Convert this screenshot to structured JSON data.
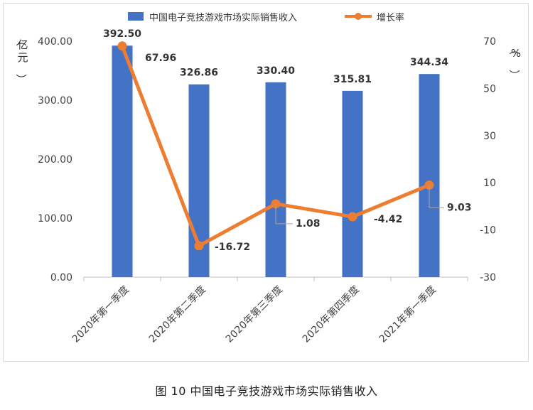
{
  "caption": "图 10  中国电子竞技游戏市场实际销售收入",
  "colors": {
    "bar": "#4472C4",
    "line": "#ED7D31",
    "axis": "#bfbfbf",
    "leader": "#a6a6a6"
  },
  "chart_data": {
    "type": "bar",
    "categories": [
      "2020年第一季度",
      "2020年第二季度",
      "2020年第三季度",
      "2020年第四季度",
      "2021年第一季度"
    ],
    "series": [
      {
        "name": "中国电子竞技游戏市场实际销售收入",
        "type": "bar",
        "axis": "left",
        "values": [
          392.5,
          326.86,
          330.4,
          315.81,
          344.34
        ],
        "labels": [
          "392.50",
          "326.86",
          "330.40",
          "315.81",
          "344.34"
        ]
      },
      {
        "name": "增长率",
        "type": "line",
        "axis": "right",
        "values": [
          67.96,
          -16.72,
          1.08,
          -4.42,
          9.03
        ],
        "labels": [
          "67.96",
          "-16.72",
          "1.08",
          "-4.42",
          "9.03"
        ]
      }
    ],
    "y_left": {
      "label": "（亿元）",
      "lim": [
        0,
        400
      ],
      "ticks": [
        0,
        100,
        200,
        300,
        400
      ],
      "tick_labels": [
        "0.00",
        "100.00",
        "200.00",
        "300.00",
        "400.00"
      ]
    },
    "y_right": {
      "label": "（%）",
      "lim": [
        -30,
        70
      ],
      "ticks": [
        -30,
        -10,
        10,
        30,
        50,
        70
      ],
      "tick_labels": [
        "-30",
        "-10",
        "10",
        "30",
        "50",
        "70"
      ]
    },
    "legend_position": "top-center",
    "grid": false
  }
}
